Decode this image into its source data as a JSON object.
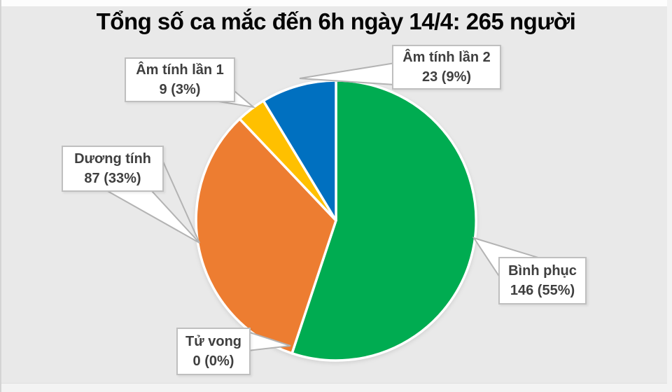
{
  "page": {
    "title": "Tổng số ca mắc đến 6h ngày 14/4: 265 người"
  },
  "chart_data": {
    "type": "pie",
    "title": "Tổng số ca mắc đến 6h ngày 14/4: 265 người",
    "total": 265,
    "unit": "người",
    "start_angle": "12-oclock",
    "direction": "clockwise",
    "legend_position": "callout-labels",
    "slices": [
      {
        "label": "Bình phục",
        "value": 146,
        "percent": 55,
        "value_text": "146 (55%)",
        "color": "#00AC51"
      },
      {
        "label": "Tử vong",
        "value": 0,
        "percent": 0,
        "value_text": "0 (0%)",
        "color": "#999999"
      },
      {
        "label": "Dương tính",
        "value": 87,
        "percent": 33,
        "value_text": "87 (33%)",
        "color": "#ED7D31"
      },
      {
        "label": "Âm tính lần 1",
        "value": 9,
        "percent": 3,
        "value_text": "9 (3%)",
        "color": "#FFC000"
      },
      {
        "label": "Âm tính lần 2",
        "value": 23,
        "percent": 9,
        "value_text": "23 (9%)",
        "color": "#0070C0"
      }
    ],
    "callout_style": {
      "background": "#FFFFFF",
      "border": "#BFBFBF",
      "text": "#3F3F3F"
    }
  }
}
